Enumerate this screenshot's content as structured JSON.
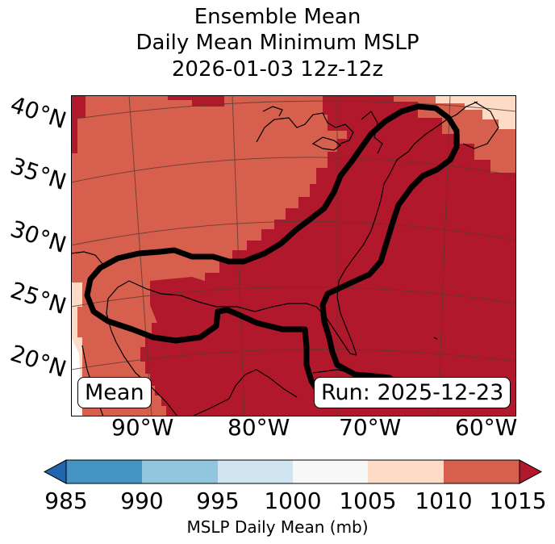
{
  "title": {
    "line1": "Ensemble Mean",
    "line2": "Daily Mean Minimum MSLP",
    "line3": "2026-01-03 12z-12z"
  },
  "map": {
    "latitude_labels": [
      "40°N",
      "35°N",
      "30°N",
      "25°N",
      "20°N"
    ],
    "longitude_labels": [
      "90°W",
      "80°W",
      "70°W",
      "60°W"
    ],
    "colors": {
      "band_1005_1010": "#fddbc7",
      "band_1010_1015": "#d6604d",
      "band_above_1015": "#b2182b",
      "contour": "#000000",
      "coastline": "#000000",
      "gridline": "#5a3a30"
    }
  },
  "badges": {
    "mean": "Mean",
    "run": "Run: 2025-12-23"
  },
  "colorbar": {
    "ticks": [
      "985",
      "990",
      "995",
      "1000",
      "1005",
      "1010",
      "1015"
    ],
    "colors": [
      "#4393c3",
      "#92c5de",
      "#d1e5f0",
      "#f7f7f7",
      "#fddbc7",
      "#d6604d"
    ],
    "under_color": "#2166ac",
    "over_color": "#b2182b",
    "label": "MSLP Daily Mean (mb)"
  }
}
